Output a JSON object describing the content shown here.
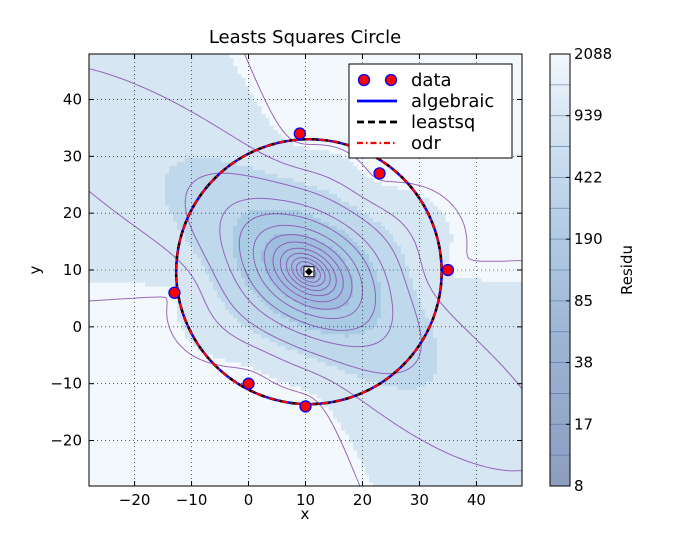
{
  "chart_data": {
    "type": "scatter",
    "title": "Leasts Squares Circle",
    "xlabel": "x",
    "ylabel": "y",
    "xlim": [
      -28,
      48
    ],
    "ylim": [
      -28,
      48
    ],
    "x_ticks": [
      -20,
      -10,
      0,
      10,
      20,
      30,
      40
    ],
    "y_ticks": [
      -20,
      -10,
      0,
      10,
      20,
      30,
      40
    ],
    "grid": true,
    "legend_position": "top-right",
    "series": [
      {
        "name": "data",
        "kind": "points",
        "color": "#ff0000",
        "edge_color": "#0000ff",
        "x": [
          9,
          35,
          0,
          -13,
          23,
          10
        ],
        "y": [
          34,
          10,
          -10,
          6,
          27,
          -14
        ]
      },
      {
        "name": "algebraic",
        "kind": "circle",
        "color": "#0000ff",
        "style": "solid",
        "center": [
          10.6,
          9.7
        ],
        "radius": 23.3
      },
      {
        "name": "leastsq",
        "kind": "circle",
        "color": "#000000",
        "style": "dashed",
        "center": [
          10.6,
          9.7
        ],
        "radius": 23.3
      },
      {
        "name": "odr",
        "kind": "circle",
        "color": "#ff0000",
        "style": "dashdot",
        "center": [
          10.6,
          9.7
        ],
        "radius": 23.3
      }
    ],
    "center_marker": {
      "x": 10.6,
      "y": 9.7
    },
    "residual_field": {
      "center": [
        10.6,
        9.7
      ],
      "radius": 23.3,
      "points_x": [
        9,
        35,
        0,
        -13,
        23,
        10
      ],
      "points_y": [
        34,
        10,
        -10,
        6,
        27,
        -14
      ]
    },
    "colorbar": {
      "label": "Residu",
      "tick_labels": [
        "8",
        "17",
        "38",
        "85",
        "190",
        "422",
        "939",
        "2088"
      ],
      "min": 8,
      "max": 2088,
      "colors": [
        "#c2d9ec",
        "#b5d2ea",
        "#a7c8e5",
        "#99bfe0",
        "#8ab5db",
        "#7aa9d3",
        "#6f9bc8",
        "#6a8fbf",
        "#6c83b5",
        "#6f77ab"
      ]
    }
  }
}
